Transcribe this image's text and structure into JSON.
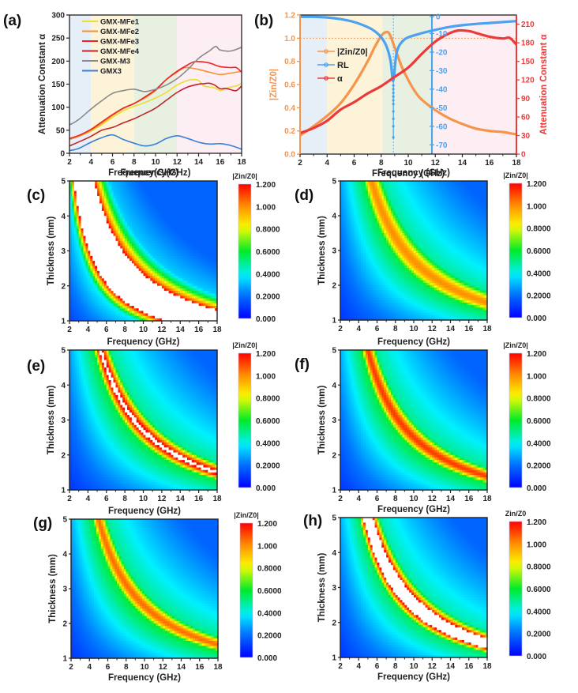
{
  "chart_data": [
    {
      "id": "a",
      "panel_label": "(a)",
      "type": "line",
      "title": "",
      "xlabel": "Frequency(GHz)",
      "ylabel": "Attenuation Constant α",
      "xlim": [
        2,
        18
      ],
      "ylim": [
        0,
        300
      ],
      "xticks": [
        "2",
        "4",
        "6",
        "8",
        "10",
        "12",
        "14",
        "16",
        "18"
      ],
      "yticks": [
        "0",
        "50",
        "100",
        "150",
        "200",
        "250",
        "300"
      ],
      "legend_position": "top-left",
      "background_bands": [
        {
          "from": 2,
          "to": 4,
          "color": "#e6eef8"
        },
        {
          "from": 4,
          "to": 8,
          "color": "#fdf3d9"
        },
        {
          "from": 8,
          "to": 12,
          "color": "#e8f0e2"
        },
        {
          "from": 12,
          "to": 18,
          "color": "#fdeef4"
        }
      ],
      "series": [
        {
          "name": "GMX-MFe1",
          "color": "#e8e030",
          "x": [
            2,
            3,
            4,
            5,
            6,
            7,
            8,
            9,
            10,
            11,
            12,
            13,
            13.5,
            14,
            14.5,
            15,
            15.5,
            16,
            16.5,
            17,
            17.5,
            18
          ],
          "y": [
            30,
            38,
            48,
            62,
            78,
            92,
            102,
            110,
            120,
            132,
            148,
            158,
            160,
            158,
            146,
            144,
            142,
            136,
            140,
            144,
            146,
            152
          ]
        },
        {
          "name": "GMX-MFe2",
          "color": "#f5922e",
          "x": [
            2,
            3,
            4,
            5,
            6,
            7,
            8,
            9,
            10,
            11,
            12,
            12.5,
            13,
            14,
            15,
            16,
            17,
            18
          ],
          "y": [
            30,
            38,
            50,
            65,
            82,
            97,
            108,
            120,
            136,
            160,
            176,
            184,
            186,
            182,
            176,
            171,
            174,
            178
          ]
        },
        {
          "name": "GMX-MFe3",
          "color": "#ec2424",
          "x": [
            2,
            3,
            4,
            5,
            6,
            7,
            8,
            9,
            10,
            11,
            12,
            13,
            13.5,
            14,
            15,
            16,
            17,
            17.5,
            18
          ],
          "y": [
            32,
            40,
            52,
            68,
            84,
            98,
            108,
            122,
            138,
            160,
            178,
            192,
            198,
            199,
            196,
            188,
            186,
            186,
            176
          ]
        },
        {
          "name": "GMX-MFe4",
          "color": "#c0242a",
          "x": [
            2,
            3,
            4,
            5,
            6,
            7,
            8,
            9,
            10,
            11,
            12,
            13,
            14,
            14.5,
            15,
            15.5,
            16,
            16.5,
            17,
            17.5,
            18
          ],
          "y": [
            16,
            26,
            37,
            50,
            56,
            66,
            75,
            86,
            98,
            115,
            132,
            144,
            150,
            151,
            152,
            148,
            140,
            141,
            138,
            136,
            146
          ]
        },
        {
          "name": "GMX-M3",
          "color": "#8a8a8a",
          "x": [
            2,
            2.3,
            3,
            4,
            5,
            6,
            7,
            8,
            9,
            10,
            11,
            12,
            13,
            14,
            15,
            15.6,
            16,
            17,
            18
          ],
          "y": [
            62,
            65,
            76,
            96,
            114,
            130,
            136,
            139,
            134,
            139,
            148,
            162,
            182,
            206,
            222,
            232,
            224,
            222,
            230
          ]
        },
        {
          "name": "GMX3",
          "color": "#3a7fd8",
          "x": [
            2,
            2.5,
            3,
            4,
            5,
            6,
            7,
            8,
            9,
            10,
            11,
            12,
            13,
            14,
            15,
            16,
            17,
            18
          ],
          "y": [
            6,
            8,
            12,
            24,
            34,
            40,
            30,
            22,
            16,
            20,
            32,
            38,
            32,
            24,
            20,
            21,
            17,
            9
          ]
        }
      ]
    },
    {
      "id": "b",
      "panel_label": "(b)",
      "type": "line",
      "xlabel": "Frequency (GHz)",
      "ylabel_left": "|Zin/Z0|",
      "ylabel_right": "Attenuation Constant α",
      "xlim": [
        2,
        18
      ],
      "ylim_left": [
        0,
        1.2
      ],
      "ylim_rl": [
        -75,
        0
      ],
      "ylim_right": [
        0,
        225
      ],
      "xticks": [
        "2",
        "4",
        "6",
        "8",
        "10",
        "12",
        "14",
        "16",
        "18"
      ],
      "yticks_left": [
        "0.0",
        "0.2",
        "0.4",
        "0.6",
        "0.8",
        "1.0",
        "1.2"
      ],
      "yticks_rl": [
        "0",
        "-10",
        "-20",
        "-30",
        "-40",
        "-50",
        "-60",
        "-70"
      ],
      "yticks_right": [
        "0",
        "30",
        "60",
        "90",
        "120",
        "150",
        "180",
        "210"
      ],
      "reference_lines": [
        {
          "axis": "y_left",
          "value": 1.0,
          "style": "dashed",
          "color": "#f5a060"
        },
        {
          "axis": "x",
          "value": 8.9,
          "style": "dashed",
          "color": "#68b0f0"
        },
        {
          "axis": "x",
          "value": 11.75,
          "style": "solid",
          "color": "#4aa2f0"
        }
      ],
      "legend_position": "center-left",
      "background_bands": [
        {
          "from": 2,
          "to": 4,
          "color": "#e6eef8"
        },
        {
          "from": 4,
          "to": 8.1,
          "color": "#fdf3d9"
        },
        {
          "from": 8.1,
          "to": 11.9,
          "color": "#e8f0e2"
        },
        {
          "from": 11.9,
          "to": 18,
          "color": "#fdeef4"
        }
      ],
      "series": [
        {
          "name": "|Zin/Z0|",
          "axis": "left",
          "color": "#f5944a",
          "x": [
            2,
            3,
            4,
            5,
            6,
            7,
            7.5,
            8,
            8.3,
            8.6,
            9,
            9.5,
            10,
            10.5,
            11,
            12,
            13,
            14,
            15,
            16,
            17,
            17.5,
            18
          ],
          "y": [
            0.16,
            0.24,
            0.33,
            0.44,
            0.6,
            0.8,
            0.92,
            1.02,
            1.05,
            1.04,
            0.92,
            0.76,
            0.64,
            0.54,
            0.47,
            0.38,
            0.31,
            0.26,
            0.22,
            0.2,
            0.19,
            0.18,
            0.17
          ]
        },
        {
          "name": "RL",
          "axis": "rl",
          "color": "#4aa2f0",
          "x": [
            2,
            3,
            4,
            5,
            6,
            7,
            7.5,
            8,
            8.4,
            8.7,
            8.85,
            8.95,
            9.1,
            9.3,
            9.6,
            10,
            11,
            12,
            13,
            14,
            15,
            16,
            17,
            18
          ],
          "y": [
            -1,
            -1,
            -1.3,
            -2.2,
            -3.8,
            -6.5,
            -8.6,
            -12,
            -17,
            -25,
            -35,
            -33,
            -22,
            -17,
            -14,
            -12,
            -9.8,
            -8,
            -6.5,
            -5.5,
            -4.8,
            -4.3,
            -3.8,
            -3.3
          ]
        },
        {
          "name": "α",
          "axis": "right",
          "color": "#ec3a3a",
          "x": [
            2,
            3,
            4,
            5,
            6,
            7,
            8,
            9,
            10,
            11,
            12,
            13,
            13.7,
            14.5,
            15,
            16,
            17,
            17.5,
            18
          ],
          "y": [
            34,
            42,
            54,
            72,
            84,
            98,
            110,
            125,
            140,
            162,
            182,
            195,
            200,
            199,
            196,
            190,
            187,
            188,
            177
          ]
        }
      ]
    },
    {
      "id": "c",
      "panel_label": "(c)",
      "type": "heatmap",
      "xlabel": "Frequency (GHz)",
      "top_label": "Frequency(GHz)",
      "ylabel": "Thickness (mm)",
      "xlim": [
        2,
        18
      ],
      "ylim": [
        1,
        5
      ],
      "colorbar_label": "|Zin/Z0|",
      "colorbar_range": [
        0,
        1.2
      ],
      "colorbar_ticks": [
        "0.000",
        "0.2000",
        "0.4000",
        "0.6000",
        "0.8000",
        "1.000",
        "1.200"
      ],
      "xticks": [
        "2",
        "4",
        "6",
        "8",
        "10",
        "12",
        "14",
        "16",
        "18"
      ],
      "yticks": [
        "1",
        "2",
        "3",
        "4",
        "5"
      ],
      "ridge_k": 17,
      "ridge_width": 1.1,
      "ridge_peak": 1.9,
      "overflow_white": true
    },
    {
      "id": "d",
      "panel_label": "(d)",
      "type": "heatmap",
      "xlabel": "Frequency (GHz)",
      "top_label": "Frequency (GHz)",
      "ylabel": "Thickness (mm)",
      "xlim": [
        2,
        18
      ],
      "ylim": [
        1,
        5
      ],
      "colorbar_label": "|Zin/Z0|",
      "colorbar_range": [
        0,
        1.2
      ],
      "colorbar_ticks": [
        "0.000",
        "0.2000",
        "0.4000",
        "0.6000",
        "0.8000",
        "1.000",
        "1.200"
      ],
      "xticks": [
        "2",
        "4",
        "6",
        "8",
        "10",
        "12",
        "14",
        "16",
        "18"
      ],
      "yticks": [
        "1",
        "2",
        "3",
        "4",
        "5"
      ],
      "ridge_k": 27,
      "ridge_width": 0.55,
      "ridge_peak": 1.0,
      "overflow_white": false
    },
    {
      "id": "e",
      "panel_label": "(e)",
      "type": "heatmap",
      "xlabel": "Frequency (GHz)",
      "top_label": "Frequency (GHz)",
      "ylabel": "Thickness (mm)",
      "xlim": [
        2,
        18
      ],
      "ylim": [
        1,
        5
      ],
      "colorbar_label": "|Zin/Z0|",
      "colorbar_range": [
        0,
        1.2
      ],
      "colorbar_ticks": [
        "0.000",
        "0.2000",
        "0.4000",
        "0.6000",
        "0.8000",
        "1.000",
        "1.200"
      ],
      "xticks": [
        "2",
        "4",
        "6",
        "8",
        "10",
        "12",
        "14",
        "16",
        "18"
      ],
      "yticks": [
        "1",
        "2",
        "3",
        "4",
        "5"
      ],
      "ridge_k": 27,
      "ridge_width": 0.42,
      "ridge_peak": 1.23,
      "overflow_white": true
    },
    {
      "id": "f",
      "panel_label": "(f)",
      "type": "heatmap",
      "xlabel": "Frequency (GHz)",
      "top_label": "Frequency (GHz)",
      "ylabel": "Thickness (mm)",
      "xlim": [
        2,
        18
      ],
      "ylim": [
        1,
        5
      ],
      "colorbar_label": "|Zin/Z0|",
      "colorbar_range": [
        0,
        1.2
      ],
      "colorbar_ticks": [
        "0.000",
        "0.2000",
        "0.4000",
        "0.6000",
        "0.8000",
        "1.000",
        "1.200"
      ],
      "xticks": [
        "2",
        "4",
        "6",
        "8",
        "10",
        "12",
        "14",
        "16",
        "18"
      ],
      "yticks": [
        "1",
        "2",
        "3",
        "4",
        "5"
      ],
      "ridge_k": 25,
      "ridge_width": 0.42,
      "ridge_peak": 1.12,
      "overflow_white": true
    },
    {
      "id": "g",
      "panel_label": "(g)",
      "type": "heatmap",
      "xlabel": "Frequency (GHz)",
      "top_label": "Frequency (GHz)",
      "ylabel": "Thickness (mm)",
      "xlim": [
        2,
        18
      ],
      "ylim": [
        1,
        5
      ],
      "colorbar_label": "|Zin/Z0|",
      "colorbar_range": [
        0,
        1.2
      ],
      "colorbar_ticks": [
        "0.000",
        "0.2000",
        "0.4000",
        "0.6000",
        "0.8000",
        "1.000",
        "1.200"
      ],
      "xticks": [
        "2",
        "4",
        "6",
        "8",
        "10",
        "12",
        "14",
        "16",
        "18"
      ],
      "yticks": [
        "1",
        "2",
        "3",
        "4",
        "5"
      ],
      "ridge_k": 25,
      "ridge_width": 0.42,
      "ridge_peak": 1.05,
      "overflow_white": false
    },
    {
      "id": "h",
      "panel_label": "(h)",
      "type": "heatmap",
      "xlabel": "Frequency (GHz)",
      "top_label": "Frequency (GHz)",
      "ylabel": "Thickness (mm)",
      "xlim": [
        2,
        18
      ],
      "ylim": [
        1,
        5
      ],
      "colorbar_label": "Zin/Z0",
      "colorbar_range": [
        0,
        1.2
      ],
      "colorbar_ticks": [
        "0.000",
        "0.2000",
        "0.4000",
        "0.6000",
        "0.8000",
        "1.000",
        "1.200"
      ],
      "xticks": [
        "2",
        "4",
        "6",
        "8",
        "10",
        "12",
        "14",
        "16",
        "18"
      ],
      "yticks": [
        "1",
        "2",
        "3",
        "4",
        "5"
      ],
      "ridge_k": 25,
      "ridge_width": 0.5,
      "ridge_peak": 1.5,
      "overflow_white": true
    }
  ]
}
